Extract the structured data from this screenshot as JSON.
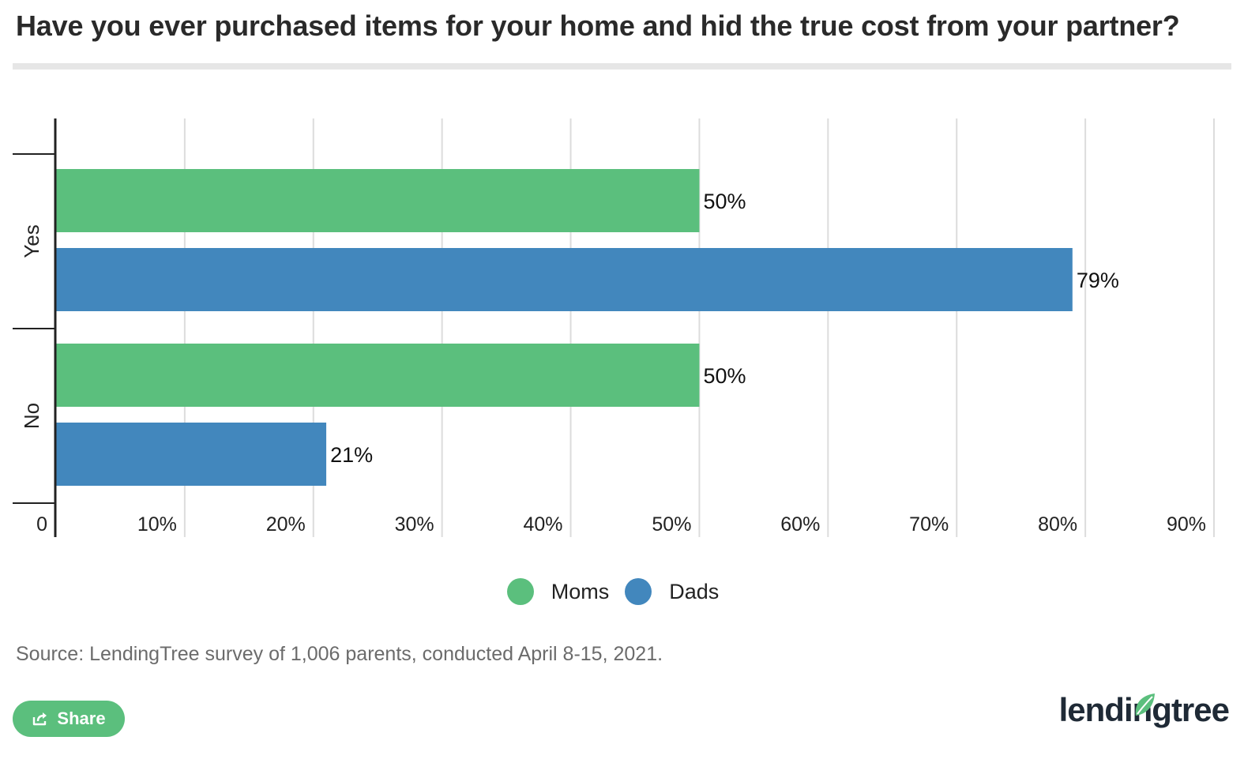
{
  "title": "Have you ever purchased items for your home and hid the true cost from your partner?",
  "source": "Source: LendingTree survey of 1,006 parents, conducted April 8-15, 2021.",
  "share_label": "Share",
  "brand": "lendingtree",
  "colors": {
    "moms": "#5bbf7d",
    "dads": "#4287bd",
    "grid": "#dcdcdc",
    "axis": "#222222"
  },
  "chart_data": {
    "type": "bar",
    "orientation": "horizontal",
    "categories": [
      "Yes",
      "No"
    ],
    "series": [
      {
        "name": "Moms",
        "values": [
          50,
          50
        ],
        "labels": [
          "50%",
          "50%"
        ]
      },
      {
        "name": "Dads",
        "values": [
          79,
          21
        ],
        "labels": [
          "79%",
          "21%"
        ]
      }
    ],
    "xlim": [
      0,
      90
    ],
    "xticks": [
      0,
      10,
      20,
      30,
      40,
      50,
      60,
      70,
      80,
      90
    ],
    "xtick_labels": [
      "0",
      "10%",
      "20%",
      "30%",
      "40%",
      "50%",
      "60%",
      "70%",
      "80%",
      "90%"
    ],
    "grid": true,
    "legend": "bottom-center"
  }
}
